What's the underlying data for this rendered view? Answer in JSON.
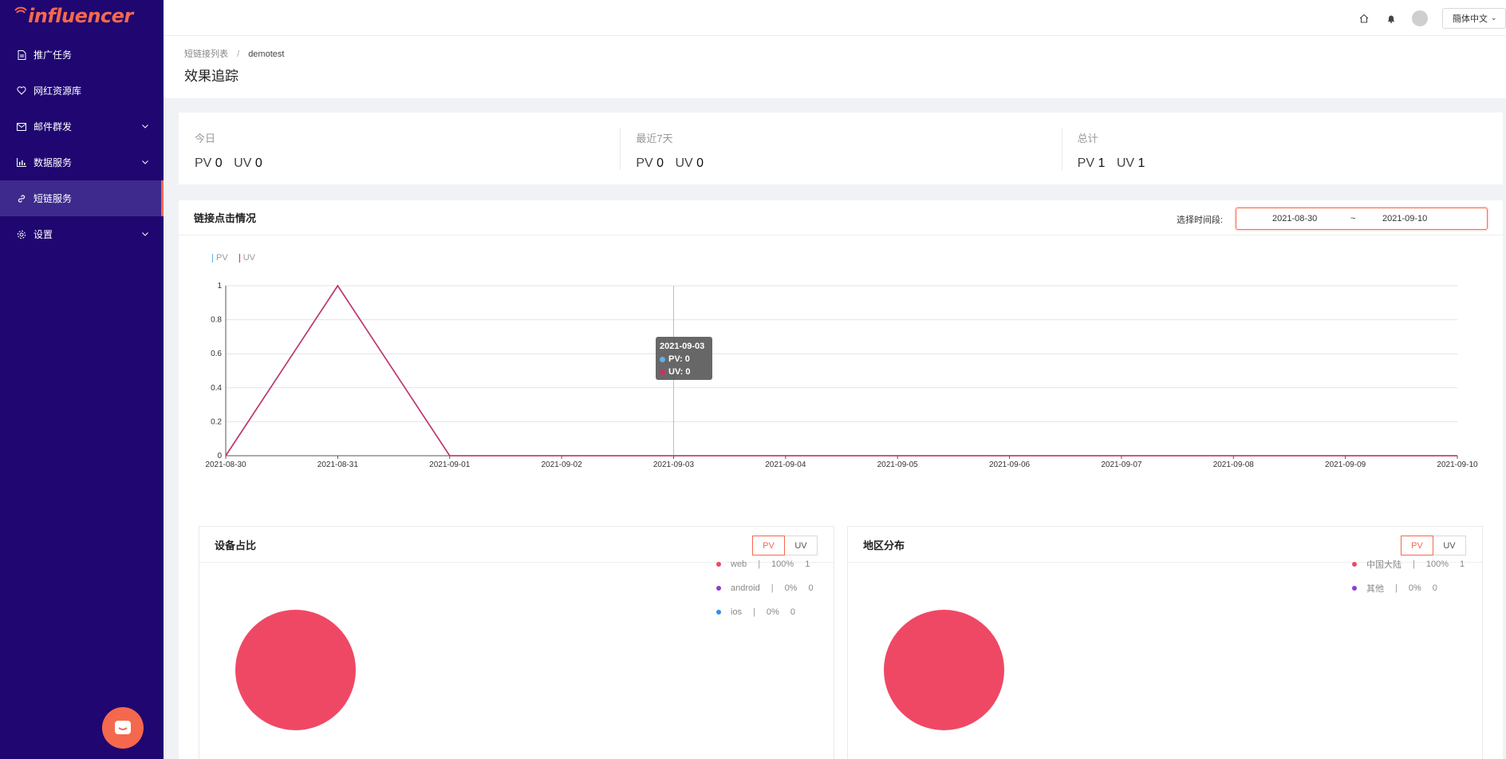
{
  "brand": {
    "logo_text": "influencer",
    "accent": "#f5684e",
    "sidebar_bg": "#1f0670"
  },
  "sidebar": {
    "items": [
      {
        "label": "推广任务",
        "icon": "document-icon",
        "has_arrow": false
      },
      {
        "label": "网红资源库",
        "icon": "heart-icon",
        "has_arrow": false
      },
      {
        "label": "邮件群发",
        "icon": "mail-icon",
        "has_arrow": true
      },
      {
        "label": "数据服务",
        "icon": "chart-icon",
        "has_arrow": true
      },
      {
        "label": "短链服务",
        "icon": "link-icon",
        "has_arrow": false,
        "active": true
      },
      {
        "label": "设置",
        "icon": "gear-icon",
        "has_arrow": true
      }
    ]
  },
  "topbar": {
    "language": "簡体中文"
  },
  "breadcrumb": {
    "parent": "短链接列表",
    "separator": "/",
    "current": "demotest"
  },
  "page_title": "效果追踪",
  "stats": [
    {
      "label": "今日",
      "pv_label": "PV",
      "pv": "0",
      "uv_label": "UV",
      "uv": "0"
    },
    {
      "label": "最近7天",
      "pv_label": "PV",
      "pv": "0",
      "uv_label": "UV",
      "uv": "0"
    },
    {
      "label": "总计",
      "pv_label": "PV",
      "pv": "1",
      "uv_label": "UV",
      "uv": "1"
    }
  ],
  "clicks_card": {
    "title": "链接点击情况",
    "range_label": "选择时间段:",
    "range_start": "2021-08-30",
    "range_sep": "~",
    "range_end": "2021-09-10"
  },
  "tooltip": {
    "date": "2021-09-03",
    "pv": "PV: 0",
    "uv": "UV: 0"
  },
  "chart_data": {
    "type": "line",
    "x": [
      "2021-08-30",
      "2021-08-31",
      "2021-09-01",
      "2021-09-02",
      "2021-09-03",
      "2021-09-04",
      "2021-09-05",
      "2021-09-06",
      "2021-09-07",
      "2021-09-08",
      "2021-09-09",
      "2021-09-10"
    ],
    "series": [
      {
        "name": "PV",
        "color": "#5fb1e8",
        "values": [
          0,
          1,
          0,
          0,
          0,
          0,
          0,
          0,
          0,
          0,
          0,
          0
        ]
      },
      {
        "name": "UV",
        "color": "#c8326b",
        "values": [
          0,
          1,
          0,
          0,
          0,
          0,
          0,
          0,
          0,
          0,
          0,
          0
        ]
      }
    ],
    "ylim": [
      0,
      1
    ],
    "yticks": [
      "0",
      "0.2",
      "0.4",
      "0.6",
      "0.8",
      "1"
    ],
    "grid": true,
    "legend": "top-left"
  },
  "device_card": {
    "title": "设备占比",
    "toggle": [
      "PV",
      "UV"
    ],
    "legend": [
      {
        "name": "web",
        "pct": "100%",
        "count": "1",
        "color": "#ef4865"
      },
      {
        "name": "android",
        "pct": "0%",
        "count": "0",
        "color": "#8a3fd1"
      },
      {
        "name": "ios",
        "pct": "0%",
        "count": "0",
        "color": "#2f8fe8"
      }
    ]
  },
  "region_card": {
    "title": "地区分布",
    "toggle": [
      "PV",
      "UV"
    ],
    "legend": [
      {
        "name": "中国大陆",
        "pct": "100%",
        "count": "1",
        "color": "#ef4865"
      },
      {
        "name": "其他",
        "pct": "0%",
        "count": "0",
        "color": "#8a3fd1"
      }
    ]
  }
}
